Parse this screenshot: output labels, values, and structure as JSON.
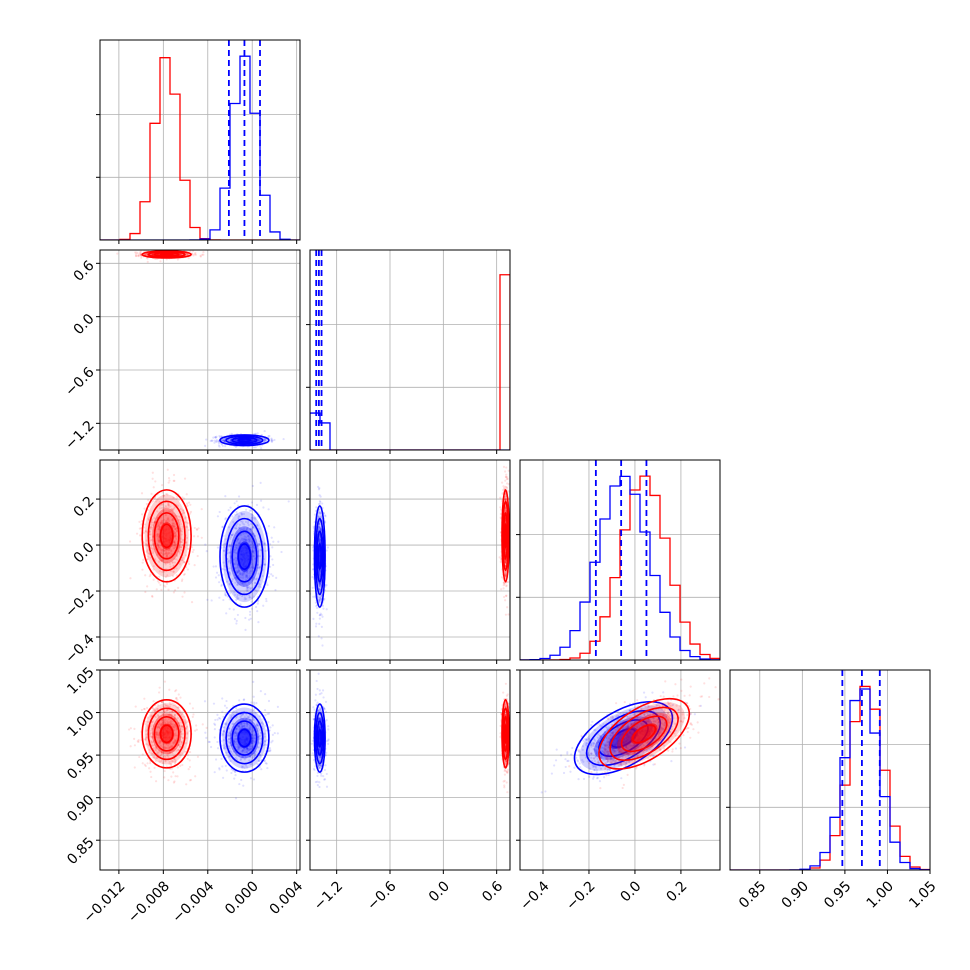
{
  "colors": {
    "series_a": "#ff0000",
    "series_b": "#0000ff",
    "grid": "#b0b0b0",
    "axis": "#000000"
  },
  "chart_data": {
    "type": "corner",
    "grid": true,
    "series": [
      {
        "name": "",
        "color": "#ff0000",
        "role": "series_a"
      },
      {
        "name": "",
        "color": "#0000ff",
        "role": "series_b"
      }
    ],
    "variables": [
      {
        "range": [
          -0.0137,
          0.0043
        ],
        "ticks": [
          -0.012,
          -0.008,
          -0.004,
          0.0,
          0.004
        ],
        "tick_labels": [
          "−0.012",
          "−0.008",
          "−0.004",
          "0.000",
          "0.004"
        ],
        "series_a": {
          "mean": -0.0077,
          "sd": 0.0011
        },
        "series_b": {
          "mean": -0.0007,
          "sd": 0.0011,
          "quantiles": [
            -0.0021,
            -0.0007,
            0.0007
          ]
        }
      },
      {
        "range": [
          -1.5,
          0.75
        ],
        "ticks": [
          -1.2,
          -0.6,
          0.0,
          0.6
        ],
        "tick_labels": [
          "−1.2",
          "−0.6",
          "0.0",
          "0.6"
        ],
        "series_a": {
          "mean": 0.7,
          "sd": 0.02
        },
        "series_b": {
          "mean": -1.39,
          "sd": 0.03,
          "quantiles": [
            -1.43,
            -1.4,
            -1.37
          ]
        }
      },
      {
        "range": [
          -0.5,
          0.37
        ],
        "ticks": [
          -0.4,
          -0.2,
          0.0,
          0.2
        ],
        "tick_labels": [
          "−0.4",
          "−0.2",
          "0.0",
          "0.2"
        ],
        "series_a": {
          "mean": 0.04,
          "sd": 0.1
        },
        "series_b": {
          "mean": -0.05,
          "sd": 0.11,
          "quantiles": [
            -0.17,
            -0.06,
            0.05
          ]
        }
      },
      {
        "range": [
          0.815,
          1.05
        ],
        "ticks": [
          0.85,
          0.9,
          0.95,
          1.0,
          1.05
        ],
        "tick_labels": [
          "0.85",
          "0.90",
          "0.95",
          "1.00",
          "1.05"
        ],
        "series_a": {
          "mean": 0.975,
          "sd": 0.02
        },
        "series_b": {
          "mean": 0.97,
          "sd": 0.02,
          "quantiles": [
            0.947,
            0.97,
            0.991
          ]
        }
      }
    ],
    "correlations": {
      "3-2": 0.6
    }
  }
}
